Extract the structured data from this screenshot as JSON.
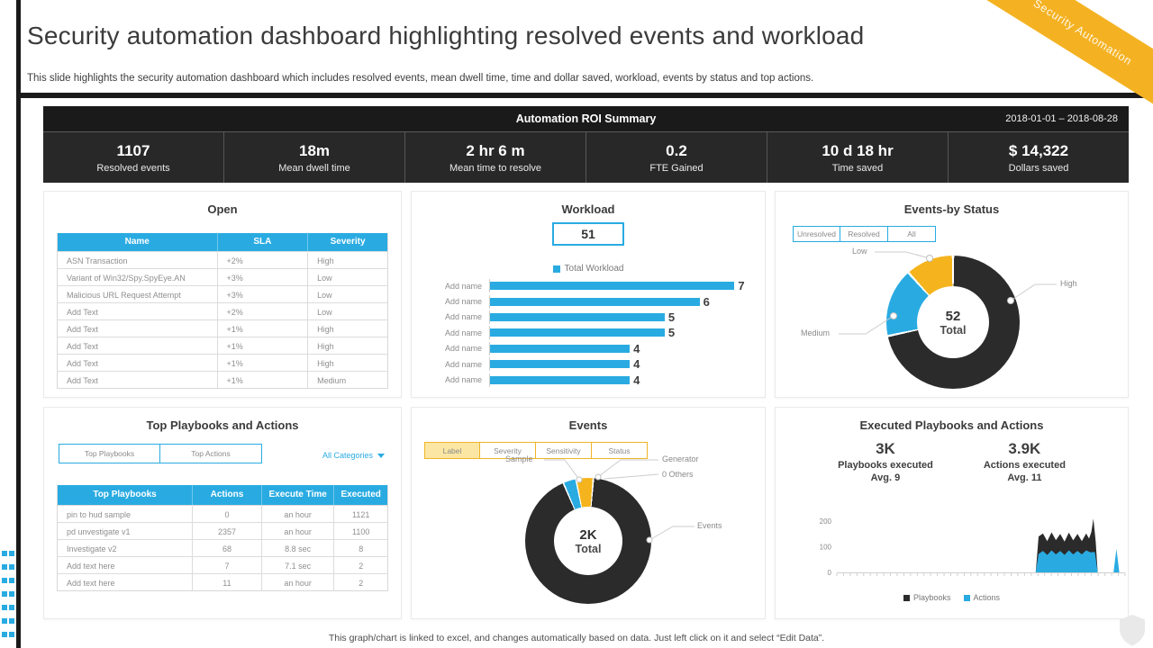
{
  "slide": {
    "title": "Security automation dashboard highlighting resolved events and workload",
    "subtitle": "This slide highlights the security automation dashboard which includes resolved events, mean dwell time, time and dollar saved, workload, events by status and top actions.",
    "ribbon_label": "Security Automation",
    "footnote": "This graph/chart is linked to excel,  and changes automatically based on data. Just left click on it and select “Edit Data”."
  },
  "roi": {
    "title": "Automation ROI Summary",
    "date_range": "2018-01-01 – 2018-08-28",
    "kpis": [
      {
        "value": "1107",
        "label": "Resolved events"
      },
      {
        "value": "18m",
        "label": "Mean dwell time"
      },
      {
        "value": "2 hr 6 m",
        "label": "Mean time to resolve"
      },
      {
        "value": "0.2",
        "label": "FTE Gained"
      },
      {
        "value": "10 d 18 hr",
        "label": "Time saved"
      },
      {
        "value": "$ 14,322",
        "label": "Dollars saved"
      }
    ]
  },
  "open_panel": {
    "title": "Open",
    "headers": [
      "Name",
      "SLA",
      "Severity"
    ],
    "rows": [
      [
        "ASN Transaction",
        "+2%",
        "High"
      ],
      [
        "Variant of Win32/Spy.SpyEye.AN",
        "+3%",
        "Low"
      ],
      [
        "Malicious URL Request Attempt",
        "+3%",
        "Low"
      ],
      [
        "Add Text",
        "+2%",
        "Low"
      ],
      [
        "Add Text",
        "+1%",
        "High"
      ],
      [
        "Add Text",
        "+1%",
        "High"
      ],
      [
        "Add Text",
        "+1%",
        "High"
      ],
      [
        "Add Text",
        "+1%",
        "Medium"
      ]
    ]
  },
  "workload_panel": {
    "title": "Workload",
    "total": "51",
    "legend": "Total Workload",
    "max": 7,
    "bars": [
      {
        "label": "Add name",
        "value": 7
      },
      {
        "label": "Add name",
        "value": 6
      },
      {
        "label": "Add name",
        "value": 5
      },
      {
        "label": "Add name",
        "value": 5
      },
      {
        "label": "Add name",
        "value": 4
      },
      {
        "label": "Add name",
        "value": 4
      },
      {
        "label": "Add name",
        "value": 4
      }
    ]
  },
  "status_panel": {
    "title": "Events-by Status",
    "buttons": [
      "Unresolved",
      "Resolved",
      "All"
    ],
    "center_value": "52",
    "center_label": "Total",
    "labels": {
      "low": "Low",
      "high": "High",
      "medium": "Medium"
    },
    "segments": [
      {
        "label": "High",
        "color": "#2b2b2b",
        "from": 1,
        "to": 257
      },
      {
        "label": "Medium",
        "color": "#29abe2",
        "from": 259,
        "to": 317
      },
      {
        "label": "Low",
        "color": "#f5b41d",
        "from": 319,
        "to": 359
      }
    ]
  },
  "playbooks_panel": {
    "title": "Top Playbooks and Actions",
    "buttons": [
      "Top Playbooks",
      "Top Actions"
    ],
    "dropdown": "All Categories",
    "headers": [
      "Top Playbooks",
      "Actions",
      "Execute  Time",
      "Executed"
    ],
    "rows": [
      [
        "pin  to  hud  sample",
        "0",
        "an hour",
        "1121"
      ],
      [
        "pd  unvestigate v1",
        "2357",
        "an hour",
        "1100"
      ],
      [
        "Investigate v2",
        "68",
        "8.8 sec",
        "8"
      ],
      [
        "Add text here",
        "7",
        "7.1 sec",
        "2"
      ],
      [
        "Add text here",
        "11",
        "an hour",
        "2"
      ]
    ]
  },
  "events_panel": {
    "title": "Events",
    "tabs": [
      "Label",
      "Severity",
      "Sensitivity",
      "Status"
    ],
    "active_tab": "Label",
    "center_value": "2K",
    "center_label": "Total",
    "labels": {
      "sample": "Sample",
      "generator": "Generator",
      "others": "0 Others",
      "events": "Events"
    },
    "segments": [
      {
        "label": "Generator",
        "color": "#f5b41d",
        "from": 0,
        "to": 4
      },
      {
        "label": "Events",
        "color": "#2b2b2b",
        "from": 5.5,
        "to": 336
      },
      {
        "label": "Sample",
        "color": "#29abe2",
        "from": 337.5,
        "to": 348
      },
      {
        "label": "Generator",
        "color": "#f5b41d",
        "from": 349.5,
        "to": 360
      }
    ]
  },
  "executed_panel": {
    "title": "Executed  Playbooks and Actions",
    "stats": [
      {
        "value": "3K",
        "line1": "Playbooks executed",
        "line2": "Avg. 9"
      },
      {
        "value": "3.9K",
        "line1": "Actions executed",
        "line2": "Avg. 11"
      }
    ],
    "chart": {
      "type": "area",
      "y_ticks": [
        200,
        100,
        0
      ],
      "y_max": 220,
      "legend": [
        {
          "label": "Playbooks",
          "color": "#2b2b2b"
        },
        {
          "label": "Actions",
          "color": "#29abe2"
        }
      ],
      "playbooks_points": [
        [
          0,
          0
        ],
        [
          69,
          0
        ],
        [
          70,
          140
        ],
        [
          71.5,
          152
        ],
        [
          73,
          122
        ],
        [
          74.5,
          156
        ],
        [
          76,
          126
        ],
        [
          77.5,
          150
        ],
        [
          79,
          120
        ],
        [
          80.5,
          155
        ],
        [
          82,
          125
        ],
        [
          83.5,
          150
        ],
        [
          85,
          122
        ],
        [
          86.5,
          152
        ],
        [
          87.5,
          132
        ],
        [
          88.3,
          158
        ],
        [
          89,
          210
        ],
        [
          89.8,
          120
        ],
        [
          90.5,
          0
        ],
        [
          100,
          0
        ]
      ],
      "actions_points": [
        [
          0,
          0
        ],
        [
          69,
          0
        ],
        [
          70,
          72
        ],
        [
          71.5,
          84
        ],
        [
          73,
          68
        ],
        [
          74.5,
          86
        ],
        [
          76,
          70
        ],
        [
          77.5,
          84
        ],
        [
          79,
          68
        ],
        [
          80.5,
          86
        ],
        [
          82,
          70
        ],
        [
          83.5,
          84
        ],
        [
          85,
          70
        ],
        [
          86.5,
          86
        ],
        [
          88,
          78
        ],
        [
          89.5,
          80
        ],
        [
          90.5,
          0
        ],
        [
          96,
          0
        ],
        [
          97,
          92
        ],
        [
          98,
          0
        ],
        [
          100,
          0
        ]
      ]
    }
  },
  "colors": {
    "accent_blue": "#29abe2",
    "accent_yellow": "#f4b223",
    "dark": "#1a1a1a",
    "donut_black": "#2b2b2b"
  }
}
